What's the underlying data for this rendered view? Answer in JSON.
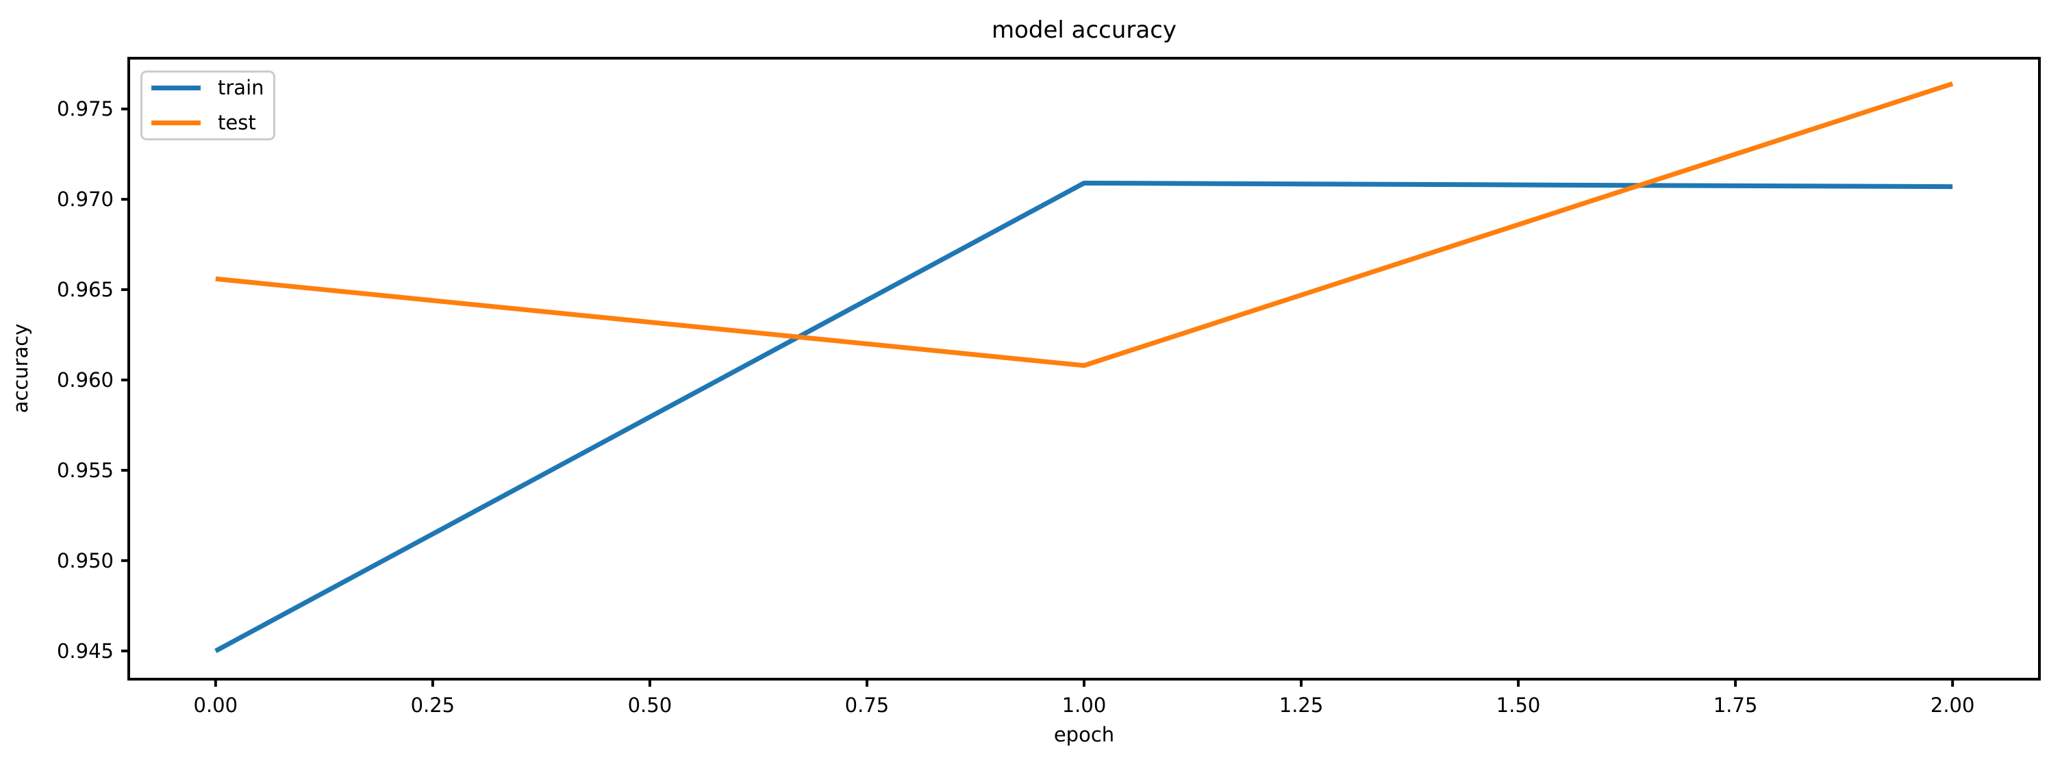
{
  "figure": {
    "background": "#ffffff",
    "text_color": "#000000",
    "spine_color": "#000000",
    "legend_border_color": "#cccccc"
  },
  "chart_data": {
    "type": "line",
    "title": "model accuracy",
    "xlabel": "epoch",
    "ylabel": "accuracy",
    "x": [
      0,
      1,
      2
    ],
    "series": [
      {
        "name": "train",
        "color": "#1f77b4",
        "values": [
          0.945,
          0.9709,
          0.9707
        ]
      },
      {
        "name": "test",
        "color": "#ff7f0e",
        "values": [
          0.9656,
          0.9608,
          0.9764
        ]
      }
    ],
    "xlim": [
      -0.1,
      2.1
    ],
    "ylim": [
      0.9434375,
      0.9778125
    ],
    "xticks": {
      "values": [
        0,
        0.25,
        0.5,
        0.75,
        1,
        1.25,
        1.5,
        1.75,
        2
      ],
      "labels": [
        "0.00",
        "0.25",
        "0.50",
        "0.75",
        "1.00",
        "1.25",
        "1.50",
        "1.75",
        "2.00"
      ]
    },
    "yticks": {
      "values": [
        0.945,
        0.95,
        0.955,
        0.96,
        0.965,
        0.97,
        0.975
      ],
      "labels": [
        "0.945",
        "0.950",
        "0.955",
        "0.960",
        "0.965",
        "0.970",
        "0.975"
      ]
    },
    "grid": false,
    "legend": {
      "position": "upper left",
      "entries": [
        "train",
        "test"
      ]
    }
  }
}
